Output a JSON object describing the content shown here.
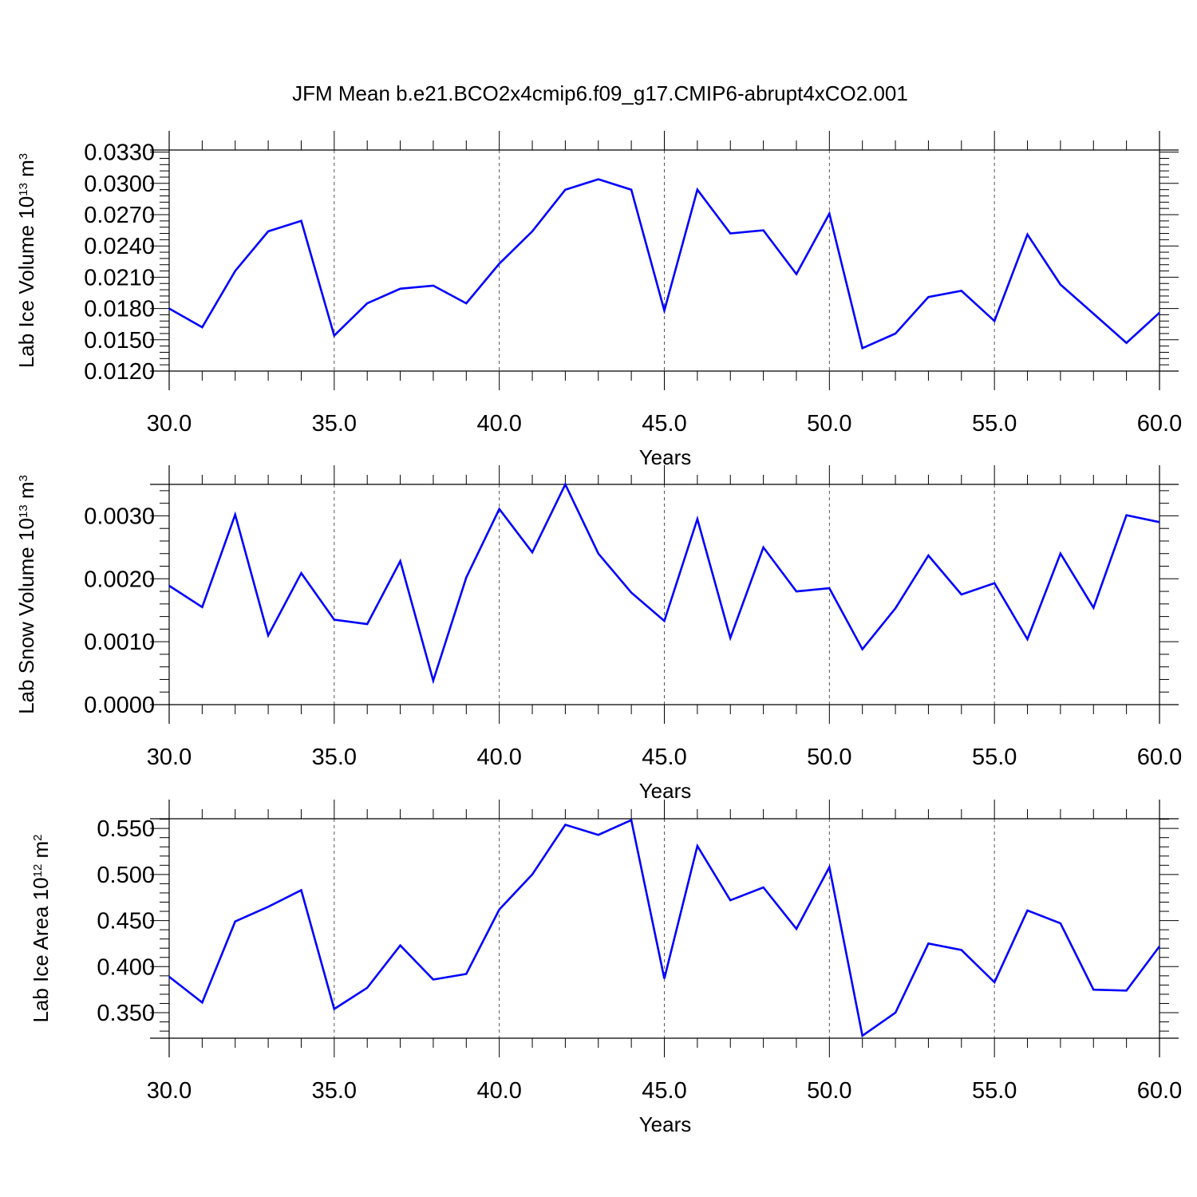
{
  "title": "JFM Mean b.e21.BCO2x4cmip6.f09_g17.CMIP6-abrupt4xCO2.001",
  "colors": {
    "line": "#0000ff",
    "axis": "#000000",
    "grid": "#555555"
  },
  "chart_data": [
    {
      "type": "line",
      "ylabel": {
        "base": "Lab Ice Volume 10",
        "exp": "13",
        "unit": " m",
        "unit_exp": "3"
      },
      "xlabel": "Years",
      "xlim": [
        30,
        60
      ],
      "ylim": [
        0.012,
        0.0332
      ],
      "x_ticks": [
        "30.0",
        "35.0",
        "40.0",
        "45.0",
        "50.0",
        "55.0",
        "60.0"
      ],
      "y_ticks": [
        "0.0120",
        "0.0150",
        "0.0180",
        "0.0210",
        "0.0240",
        "0.0270",
        "0.0300",
        "0.0330"
      ],
      "grid": "vertical dashed at major x ticks",
      "x": [
        30,
        31,
        32,
        33,
        34,
        35,
        36,
        37,
        38,
        39,
        40,
        41,
        42,
        43,
        44,
        45,
        46,
        47,
        48,
        49,
        50,
        51,
        52,
        53,
        54,
        55,
        56,
        57,
        58,
        59,
        60
      ],
      "values": [
        0.018,
        0.0162,
        0.0216,
        0.0254,
        0.0264,
        0.0154,
        0.0185,
        0.0199,
        0.0202,
        0.0185,
        0.0223,
        0.0254,
        0.0294,
        0.0304,
        0.0294,
        0.0178,
        0.0294,
        0.0252,
        0.0255,
        0.0213,
        0.0271,
        0.0142,
        0.0156,
        0.0191,
        0.0197,
        0.0168,
        0.0251,
        0.0203,
        0.0175,
        0.0147,
        0.0176
      ]
    },
    {
      "type": "line",
      "ylabel": {
        "base": "Lab Snow Volume 10",
        "exp": "13",
        "unit": " m",
        "unit_exp": "3"
      },
      "xlabel": "Years",
      "xlim": [
        30,
        60
      ],
      "ylim": [
        0.0,
        0.0035
      ],
      "x_ticks": [
        "30.0",
        "35.0",
        "40.0",
        "45.0",
        "50.0",
        "55.0",
        "60.0"
      ],
      "y_ticks": [
        "0.0000",
        "0.0010",
        "0.0020",
        "0.0030"
      ],
      "grid": "vertical dashed at major x ticks",
      "x": [
        30,
        31,
        32,
        33,
        34,
        35,
        36,
        37,
        38,
        39,
        40,
        41,
        42,
        43,
        44,
        45,
        46,
        47,
        48,
        49,
        50,
        51,
        52,
        53,
        54,
        55,
        56,
        57,
        58,
        59,
        60
      ],
      "values": [
        0.00189,
        0.00155,
        0.00302,
        0.0011,
        0.00209,
        0.00135,
        0.00128,
        0.00228,
        0.00038,
        0.00202,
        0.00311,
        0.00242,
        0.0035,
        0.0024,
        0.00178,
        0.00133,
        0.00295,
        0.00106,
        0.0025,
        0.0018,
        0.00185,
        0.00088,
        0.00153,
        0.00237,
        0.00175,
        0.00193,
        0.00104,
        0.0024,
        0.00154,
        0.00301,
        0.0029
      ]
    },
    {
      "type": "line",
      "ylabel": {
        "base": "Lab Ice Area 10",
        "exp": "12",
        "unit": " m",
        "unit_exp": "2"
      },
      "xlabel": "Years",
      "xlim": [
        30,
        60
      ],
      "ylim": [
        0.3223,
        0.5605
      ],
      "x_ticks": [
        "30.0",
        "35.0",
        "40.0",
        "45.0",
        "50.0",
        "55.0",
        "60.0"
      ],
      "y_ticks": [
        "0.350",
        "0.400",
        "0.450",
        "0.500",
        "0.550"
      ],
      "grid": "vertical dashed at major x ticks",
      "x": [
        30,
        31,
        32,
        33,
        34,
        35,
        36,
        37,
        38,
        39,
        40,
        41,
        42,
        43,
        44,
        45,
        46,
        47,
        48,
        49,
        50,
        51,
        52,
        53,
        54,
        55,
        56,
        57,
        58,
        59,
        60
      ],
      "values": [
        0.389,
        0.361,
        0.449,
        0.465,
        0.483,
        0.354,
        0.377,
        0.423,
        0.386,
        0.392,
        0.462,
        0.5,
        0.554,
        0.543,
        0.559,
        0.387,
        0.531,
        0.472,
        0.486,
        0.441,
        0.508,
        0.325,
        0.35,
        0.425,
        0.418,
        0.383,
        0.461,
        0.447,
        0.375,
        0.374,
        0.422
      ]
    }
  ]
}
